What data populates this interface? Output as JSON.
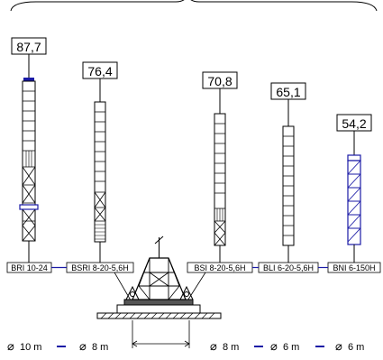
{
  "heights": [
    "87,7",
    "76,4",
    "70,8",
    "65,1",
    "54,2"
  ],
  "base_labels": [
    "BRI 10-24",
    "BSRI 8-20-5,6H",
    "BSI 8-20-5,6H",
    "BLI 6-20-5,6H",
    "BNI 6-150H"
  ],
  "sections": [
    {
      "symbol": "⌀",
      "text": "10 m"
    },
    {
      "symbol": "⌀",
      "text": "8 m"
    },
    {
      "symbol": "⌀",
      "text": "8 m"
    },
    {
      "symbol": "⌀",
      "text": "6 m"
    },
    {
      "symbol": "⌀",
      "text": "6 m"
    }
  ],
  "colors": {
    "line": "#000000",
    "accent": "#1a1aa6"
  }
}
